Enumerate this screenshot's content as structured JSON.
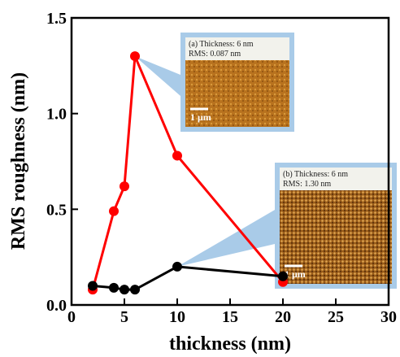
{
  "chart_data": {
    "type": "line",
    "xlabel": "thickness (nm)",
    "ylabel": "RMS roughness (nm)",
    "xlim": [
      0,
      30
    ],
    "xticks": [
      0,
      5,
      10,
      15,
      20,
      25,
      30
    ],
    "ylim": [
      0,
      1.5
    ],
    "yticks": [
      {
        "value": 0,
        "label": "0.0"
      },
      {
        "value": 0.5,
        "label": "0.5"
      },
      {
        "value": 1.0,
        "label": "1.0"
      },
      {
        "value": 1.5,
        "label": "1.5"
      }
    ],
    "series": [
      {
        "color": "#ff0000",
        "x": [
          2,
          4,
          5,
          6,
          10,
          20
        ],
        "values": [
          0.08,
          0.49,
          0.62,
          1.3,
          0.78,
          0.12
        ]
      },
      {
        "color": "#000000",
        "x": [
          2,
          4,
          5,
          6,
          10,
          20
        ],
        "values": [
          0.1,
          0.09,
          0.08,
          0.08,
          0.2,
          0.15
        ]
      }
    ],
    "insets": [
      {
        "lines": [
          "(a) Thickness: 6 nm",
          "RMS: 0.087 nm"
        ],
        "scale": "1 μm"
      },
      {
        "lines": [
          "(b) Thickness: 6 nm",
          "RMS: 1.30 nm"
        ],
        "scale": "1 μm"
      }
    ]
  }
}
